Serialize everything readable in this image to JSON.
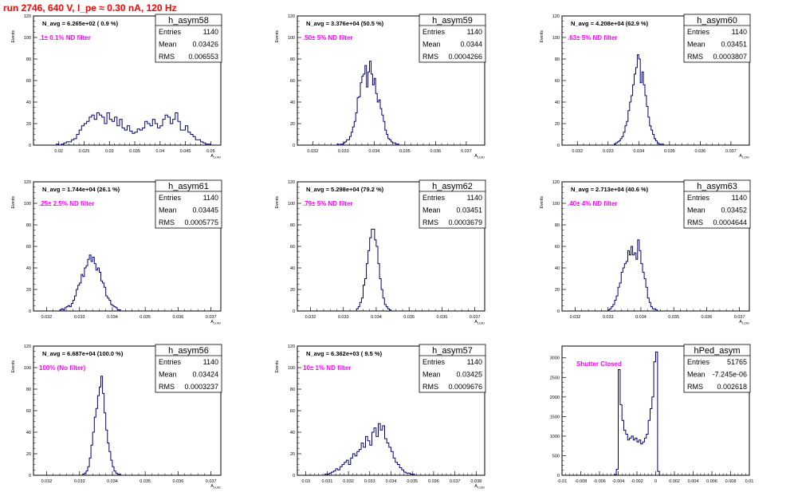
{
  "page": {
    "title": "run 2746,   640 V, I_pe ≈ 0.30 nA, 120 Hz"
  },
  "colors": {
    "histogram_line": "#00007f",
    "annotation": "#ff00ff",
    "title": "#ff0000",
    "axis": "#000000"
  },
  "chart_data": [
    {
      "type": "bar",
      "name": "h_asym58",
      "ylabel": "Events",
      "xlabel": "A_LUID",
      "xlim": [
        0.015,
        0.052
      ],
      "ylim": [
        0,
        120
      ],
      "xticks": [
        0.02,
        0.025,
        0.03,
        0.035,
        0.04,
        0.045,
        0.05
      ],
      "xtick_labels": [
        "0.02",
        "0.025",
        "0.03",
        "0.035",
        "0.04",
        "0.045",
        "0.05"
      ],
      "yticks": [
        0,
        20,
        40,
        60,
        80,
        100,
        120
      ],
      "n_avg": "N_avg = 6.265e+02 ( 0.9 %)",
      "filter": ".1± 0.1% ND filter",
      "stats": {
        "Entries": "1140",
        "Mean": "0.03426",
        "RMS": "0.006553"
      },
      "bins": {
        "x0": 0.0195,
        "width": 0.0005,
        "values": [
          1,
          0,
          1,
          2,
          3,
          3,
          5,
          6,
          10,
          14,
          18,
          20,
          22,
          26,
          28,
          24,
          30,
          28,
          26,
          20,
          30,
          24,
          22,
          26,
          18,
          24,
          16,
          14,
          18,
          13,
          11,
          12,
          15,
          14,
          16,
          22,
          20,
          18,
          24,
          20,
          16,
          18,
          24,
          28,
          26,
          20,
          24,
          30,
          22,
          14,
          14,
          18,
          12,
          10,
          8,
          5,
          5,
          3,
          2,
          1,
          1
        ]
      }
    },
    {
      "type": "bar",
      "name": "h_asym59",
      "ylabel": "Events",
      "xlabel": "A_LUID",
      "xlim": [
        0.0315,
        0.0376
      ],
      "ylim": [
        0,
        120
      ],
      "xticks": [
        0.032,
        0.033,
        0.034,
        0.035,
        0.036,
        0.037
      ],
      "xtick_labels": [
        "0.032",
        "0.033",
        "0.034",
        "0.035",
        "0.036",
        "0.037"
      ],
      "yticks": [
        0,
        20,
        40,
        60,
        80,
        100,
        120
      ],
      "n_avg": "N_avg = 3.376e+04 (50.5 %)",
      "filter": ".50± 5% ND filter",
      "stats": {
        "Entries": "1140",
        "Mean": "0.0344",
        "RMS": "0.0004266"
      },
      "bins": {
        "x0": 0.0328,
        "width": 5e-05,
        "values": [
          1,
          0,
          1,
          1,
          2,
          3,
          5,
          5,
          8,
          12,
          17,
          22,
          30,
          44,
          45,
          58,
          64,
          66,
          74,
          54,
          68,
          78,
          66,
          56,
          62,
          48,
          40,
          42,
          34,
          28,
          22,
          14,
          10,
          6,
          5,
          3,
          2,
          2,
          1,
          1
        ]
      }
    },
    {
      "type": "bar",
      "name": "h_asym60",
      "ylabel": "Events",
      "xlabel": "A_LUID",
      "xlim": [
        0.0315,
        0.0376
      ],
      "ylim": [
        0,
        120
      ],
      "xticks": [
        0.032,
        0.033,
        0.034,
        0.035,
        0.036,
        0.037
      ],
      "xtick_labels": [
        "0.032",
        "0.033",
        "0.034",
        "0.035",
        "0.036",
        "0.037"
      ],
      "yticks": [
        0,
        20,
        40,
        60,
        80,
        100,
        120
      ],
      "n_avg": "N_avg = 4.208e+04 (62.9 %)",
      "filter": ".63± 5% ND filter",
      "stats": {
        "Entries": "1140",
        "Mean": "0.03451",
        "RMS": "0.0003807"
      },
      "bins": {
        "x0": 0.0332,
        "width": 5e-05,
        "values": [
          1,
          2,
          3,
          4,
          6,
          8,
          12,
          18,
          22,
          32,
          40,
          46,
          56,
          66,
          72,
          84,
          80,
          58,
          68,
          56,
          46,
          36,
          26,
          18,
          14,
          10,
          6,
          4,
          2,
          1,
          1,
          1
        ]
      }
    },
    {
      "type": "bar",
      "name": "h_asym61",
      "ylabel": "Events",
      "xlabel": "A_LUID",
      "xlim": [
        0.0316,
        0.0373
      ],
      "ylim": [
        0,
        120
      ],
      "xticks": [
        0.032,
        0.033,
        0.034,
        0.035,
        0.036,
        0.037
      ],
      "xtick_labels": [
        "0.032",
        "0.033",
        "0.034",
        "0.035",
        "0.036",
        "0.037"
      ],
      "yticks": [
        0,
        20,
        40,
        60,
        80,
        100,
        120
      ],
      "n_avg": "N_avg = 1.744e+04 (26.1 %)",
      "filter": ".25± 2.5% ND filter",
      "stats": {
        "Entries": "1140",
        "Mean": "0.03445",
        "RMS": "0.0005775"
      },
      "bins": {
        "x0": 0.0324,
        "width": 5e-05,
        "values": [
          1,
          2,
          1,
          3,
          4,
          5,
          4,
          7,
          10,
          14,
          20,
          24,
          26,
          34,
          32,
          40,
          42,
          48,
          52,
          46,
          50,
          44,
          38,
          40,
          36,
          28,
          26,
          22,
          14,
          12,
          10,
          6,
          5,
          4,
          3,
          1,
          1
        ]
      }
    },
    {
      "type": "bar",
      "name": "h_asym62",
      "ylabel": "Events",
      "xlabel": "A_LUID",
      "xlim": [
        0.0316,
        0.0373
      ],
      "ylim": [
        0,
        120
      ],
      "xticks": [
        0.032,
        0.033,
        0.034,
        0.035,
        0.036,
        0.037
      ],
      "xtick_labels": [
        "0.032",
        "0.033",
        "0.034",
        "0.035",
        "0.036",
        "0.037"
      ],
      "yticks": [
        0,
        20,
        40,
        60,
        80,
        100,
        120
      ],
      "n_avg": "N_avg = 5.298e+04 (79.2 %)",
      "filter": ".79± 5% ND filter",
      "stats": {
        "Entries": "1140",
        "Mean": "0.03451",
        "RMS": "0.0003679"
      },
      "bins": {
        "x0": 0.0334,
        "width": 5e-05,
        "values": [
          2,
          4,
          8,
          12,
          24,
          30,
          44,
          56,
          68,
          76,
          76,
          66,
          60,
          44,
          30,
          20,
          12,
          6,
          4,
          2,
          1
        ]
      }
    },
    {
      "type": "bar",
      "name": "h_asym63",
      "ylabel": "Events",
      "xlabel": "A_LUID",
      "xlim": [
        0.0316,
        0.0373
      ],
      "ylim": [
        0,
        120
      ],
      "xticks": [
        0.032,
        0.033,
        0.034,
        0.035,
        0.036,
        0.037
      ],
      "xtick_labels": [
        "0.032",
        "0.033",
        "0.034",
        "0.035",
        "0.036",
        "0.037"
      ],
      "yticks": [
        0,
        20,
        40,
        60,
        80,
        100,
        120
      ],
      "n_avg": "N_avg = 2.713e+04 (40.6 %)",
      "filter": ".40± 4% ND filter",
      "stats": {
        "Entries": "1140",
        "Mean": "0.03452",
        "RMS": "0.0004644"
      },
      "bins": {
        "x0": 0.033,
        "width": 5e-05,
        "values": [
          1,
          2,
          4,
          6,
          10,
          14,
          22,
          26,
          36,
          40,
          44,
          46,
          56,
          52,
          60,
          52,
          54,
          48,
          66,
          56,
          44,
          36,
          30,
          22,
          12,
          8,
          4,
          2,
          2,
          1
        ]
      }
    },
    {
      "type": "bar",
      "name": "h_asym56",
      "ylabel": "Events",
      "xlabel": "A_LUID",
      "xlim": [
        0.0316,
        0.0373
      ],
      "ylim": [
        0,
        120
      ],
      "xticks": [
        0.032,
        0.033,
        0.034,
        0.035,
        0.036,
        0.037
      ],
      "xtick_labels": [
        "0.032",
        "0.033",
        "0.034",
        "0.035",
        "0.036",
        "0.037"
      ],
      "yticks": [
        0,
        20,
        40,
        60,
        80,
        100,
        120
      ],
      "n_avg": "N_avg = 6.687e+04 (100.0 %)",
      "filter": "100% (No filter)",
      "stats": {
        "Entries": "1140",
        "Mean": "0.03424",
        "RMS": "0.0003237"
      },
      "bins": {
        "x0": 0.0331,
        "width": 5e-05,
        "values": [
          1,
          2,
          4,
          8,
          16,
          28,
          40,
          54,
          62,
          74,
          82,
          92,
          76,
          58,
          42,
          30,
          22,
          14,
          8,
          4,
          2,
          1,
          1
        ]
      }
    },
    {
      "type": "bar",
      "name": "h_asym57",
      "ylabel": "Events",
      "xlabel": "A_LUID",
      "xlim": [
        0.0296,
        0.0384
      ],
      "ylim": [
        0,
        120
      ],
      "xticks": [
        0.03,
        0.031,
        0.032,
        0.033,
        0.034,
        0.035,
        0.036,
        0.037,
        0.038
      ],
      "xtick_labels": [
        "0.03",
        "0.031",
        "0.032",
        "0.033",
        "0.034",
        "0.035",
        "0.036",
        "0.037",
        "0.038"
      ],
      "yticks": [
        0,
        20,
        40,
        60,
        80,
        100,
        120
      ],
      "n_avg": "N_avg = 6.362e+03 ( 9.5 %)",
      "filter": "10± 1% ND filter",
      "stats": {
        "Entries": "1140",
        "Mean": "0.03425",
        "RMS": "0.0009676"
      },
      "bins": {
        "x0": 0.0309,
        "width": 0.0001,
        "values": [
          1,
          1,
          2,
          3,
          4,
          6,
          5,
          8,
          10,
          12,
          14,
          10,
          16,
          20,
          18,
          22,
          24,
          30,
          26,
          36,
          32,
          28,
          40,
          44,
          36,
          48,
          42,
          46,
          34,
          30,
          26,
          22,
          16,
          12,
          10,
          7,
          5,
          3,
          2,
          2,
          1,
          1
        ]
      }
    },
    {
      "type": "bar",
      "name": "hPed_asym",
      "ylabel": "",
      "xlabel": "",
      "xlim": [
        -0.01,
        0.01
      ],
      "ylim": [
        0,
        3300
      ],
      "xticks": [
        -0.01,
        -0.008,
        -0.006,
        -0.004,
        -0.002,
        0,
        0.002,
        0.004,
        0.006,
        0.008,
        0.01
      ],
      "xtick_labels": [
        "-0.01",
        "-0.008",
        "-0.006",
        "-0.004",
        "-0.002",
        "0",
        "0.002",
        "0.004",
        "0.006",
        "0.008",
        "0.01"
      ],
      "yticks": [
        0,
        500,
        1000,
        1500,
        2000,
        2500,
        3000
      ],
      "n_avg": "",
      "filter": "Shutter Closed",
      "stats": {
        "Entries": "51765",
        "Mean": "-7.245e-06",
        "RMS": "0.002618"
      },
      "bins": {
        "x0": -0.0044,
        "width": 0.0002,
        "values": [
          20,
          150,
          2700,
          1800,
          1400,
          1150,
          1050,
          900,
          950,
          1000,
          900,
          950,
          850,
          900,
          800,
          850,
          950,
          1050,
          1400,
          1700,
          2000,
          2900,
          3150,
          100
        ]
      }
    }
  ]
}
